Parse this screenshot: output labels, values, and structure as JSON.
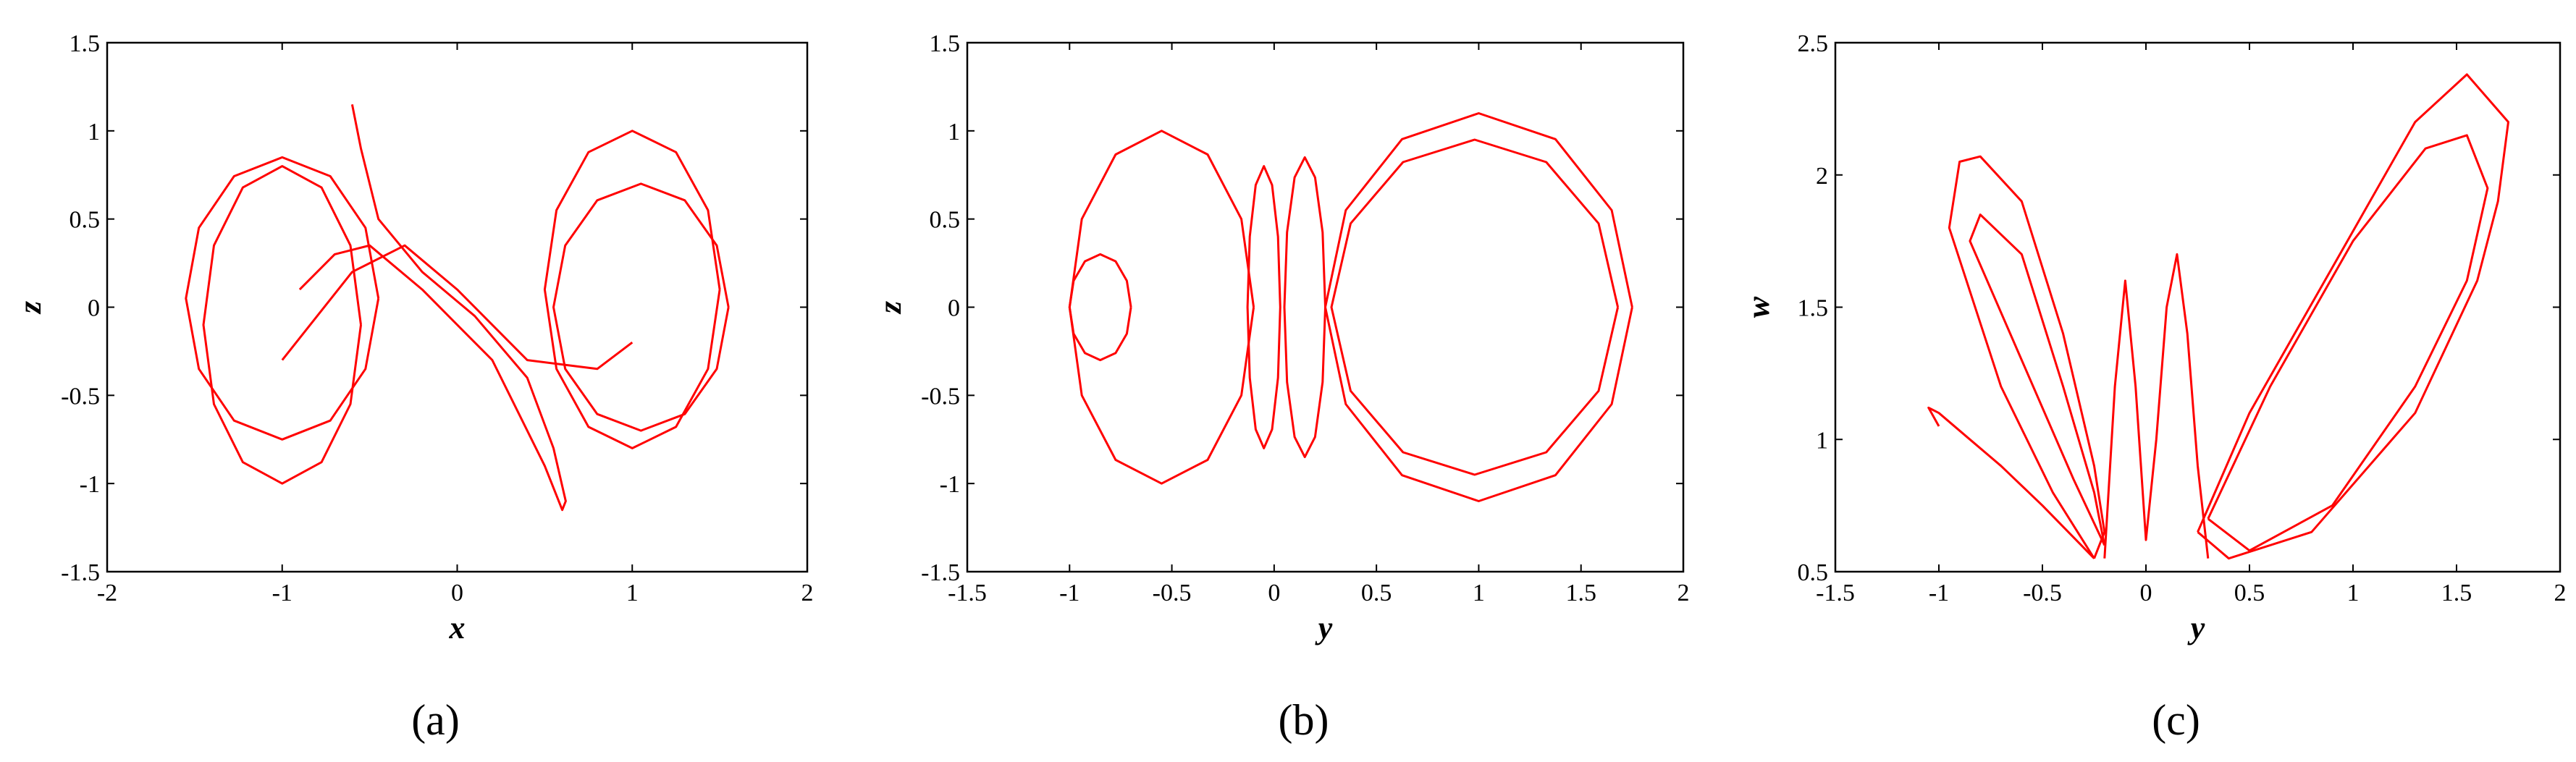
{
  "chart_data": [
    {
      "type": "line",
      "caption": "(a)",
      "xlabel": "x",
      "ylabel": "z",
      "color": "#ff0000",
      "xlim": [
        -2,
        2
      ],
      "ylim": [
        -1.5,
        1.5
      ],
      "xticks": [
        -2,
        -1,
        0,
        1,
        2
      ],
      "yticks": [
        -1.5,
        -1,
        -0.5,
        0,
        0.5,
        1,
        1.5
      ],
      "series": [
        {
          "x": [
            -0.45,
            -0.524,
            -0.725,
            -1,
            -1.275,
            -1.476,
            -1.55,
            -1.476,
            -1.275,
            -1,
            -0.725,
            -0.524,
            -0.45
          ],
          "values": [
            0.05,
            0.45,
            0.743,
            0.85,
            0.743,
            0.45,
            0.05,
            -0.35,
            -0.643,
            -0.75,
            -0.643,
            -0.35,
            0.05
          ]
        },
        {
          "x": [
            -0.55,
            -0.61,
            -0.775,
            -1,
            -1.225,
            -1.39,
            -1.45,
            -1.39,
            -1.225,
            -1,
            -0.775,
            -0.61,
            -0.55
          ],
          "values": [
            -0.1,
            0.35,
            0.679,
            0.8,
            0.679,
            0.35,
            -0.1,
            -0.55,
            -0.879,
            -1.0,
            -0.879,
            -0.55,
            -0.1
          ]
        },
        {
          "x": [
            1.5,
            1.433,
            1.25,
            1,
            0.75,
            0.567,
            0.5,
            0.567,
            0.75,
            1,
            1.25,
            1.433,
            1.5
          ],
          "values": [
            0.1,
            0.55,
            0.879,
            1.0,
            0.879,
            0.55,
            0.1,
            -0.35,
            -0.679,
            -0.8,
            -0.679,
            -0.35,
            0.1
          ]
        },
        {
          "x": [
            1.55,
            1.483,
            1.3,
            1.05,
            0.8,
            0.617,
            0.55,
            0.617,
            0.8,
            1.05,
            1.3,
            1.483,
            1.55
          ],
          "values": [
            0,
            0.35,
            0.606,
            0.7,
            0.606,
            0.35,
            0,
            -0.35,
            -0.606,
            -0.7,
            -0.606,
            -0.35,
            0
          ]
        },
        {
          "x": [
            -0.6,
            -0.55,
            -0.45,
            -0.2,
            0.1,
            0.4,
            0.55,
            0.62,
            0.6,
            0.5,
            0.2,
            -0.2,
            -0.5,
            -0.7,
            -0.9
          ],
          "values": [
            1.15,
            0.9,
            0.5,
            0.2,
            -0.05,
            -0.4,
            -0.8,
            -1.1,
            -1.15,
            -0.9,
            -0.3,
            0.1,
            0.35,
            0.3,
            0.1
          ]
        },
        {
          "x": [
            -1,
            -0.6,
            -0.3,
            0,
            0.4,
            0.8,
            1
          ],
          "values": [
            -0.3,
            0.2,
            0.35,
            0.1,
            -0.3,
            -0.35,
            -0.2
          ]
        }
      ]
    },
    {
      "type": "line",
      "caption": "(b)",
      "xlabel": "y",
      "ylabel": "z",
      "color": "#ff0000",
      "xlim": [
        -1.5,
        2
      ],
      "ylim": [
        -1.5,
        1.5
      ],
      "xticks": [
        -1.5,
        -1,
        -0.5,
        0,
        0.5,
        1,
        1.5,
        2
      ],
      "yticks": [
        -1.5,
        -1,
        -0.5,
        0,
        0.5,
        1,
        1.5
      ],
      "series": [
        {
          "x": [
            1.75,
            1.65,
            1.375,
            1.0,
            0.625,
            0.35,
            0.25,
            0.35,
            0.625,
            1.0,
            1.375,
            1.65,
            1.75
          ],
          "values": [
            0,
            0.55,
            0.953,
            1.1,
            0.953,
            0.55,
            0,
            -0.55,
            -0.953,
            -1.1,
            -0.953,
            -0.55,
            0
          ]
        },
        {
          "x": [
            1.68,
            1.586,
            1.33,
            0.98,
            0.63,
            0.374,
            0.28,
            0.374,
            0.63,
            0.98,
            1.33,
            1.586,
            1.68
          ],
          "values": [
            0,
            0.475,
            0.823,
            0.95,
            0.823,
            0.475,
            0,
            -0.475,
            -0.823,
            -0.95,
            -0.823,
            -0.475,
            0
          ]
        },
        {
          "x": [
            -0.1,
            -0.16,
            -0.325,
            -0.55,
            -0.775,
            -0.94,
            -1.0,
            -0.94,
            -0.775,
            -0.55,
            -0.325,
            -0.16,
            -0.1
          ],
          "values": [
            0,
            0.5,
            0.866,
            1.0,
            0.866,
            0.5,
            0,
            -0.5,
            -0.866,
            -1.0,
            -0.866,
            -0.5,
            0
          ]
        },
        {
          "x": [
            0.03,
            0.019,
            -0.01,
            -0.05,
            -0.09,
            -0.119,
            -0.13,
            -0.119,
            -0.09,
            -0.05,
            -0.01,
            0.019,
            0.03
          ],
          "values": [
            0,
            0.4,
            0.693,
            0.8,
            0.693,
            0.4,
            0,
            -0.4,
            -0.693,
            -0.8,
            -0.693,
            -0.4,
            0
          ]
        },
        {
          "x": [
            0.25,
            0.237,
            0.2,
            0.15,
            0.1,
            0.063,
            0.05,
            0.063,
            0.1,
            0.15,
            0.2,
            0.237,
            0.25
          ],
          "values": [
            0,
            0.425,
            0.736,
            0.85,
            0.736,
            0.425,
            0,
            -0.425,
            -0.736,
            -0.85,
            -0.736,
            -0.425,
            0
          ]
        },
        {
          "x": [
            -0.7,
            -0.72,
            -0.775,
            -0.85,
            -0.925,
            -0.98,
            -1.0,
            -0.98,
            -0.925,
            -0.85,
            -0.775,
            -0.72,
            -0.7
          ],
          "values": [
            0,
            0.15,
            0.26,
            0.3,
            0.26,
            0.15,
            0,
            -0.15,
            -0.26,
            -0.3,
            -0.26,
            -0.15,
            0
          ]
        }
      ]
    },
    {
      "type": "line",
      "caption": "(c)",
      "xlabel": "y",
      "ylabel": "w",
      "color": "#ff0000",
      "xlim": [
        -1.5,
        2
      ],
      "ylim": [
        0.5,
        2.5
      ],
      "xticks": [
        -1.5,
        -1,
        -0.5,
        0,
        0.5,
        1,
        1.5,
        2
      ],
      "yticks": [
        0.5,
        1,
        1.5,
        2,
        2.5
      ],
      "series": [
        {
          "x": [
            0.25,
            0.5,
            0.9,
            1.3,
            1.55,
            1.75,
            1.7,
            1.6,
            1.3,
            0.8,
            0.4,
            0.25
          ],
          "values": [
            0.65,
            1.1,
            1.65,
            2.2,
            2.38,
            2.2,
            1.9,
            1.6,
            1.1,
            0.65,
            0.55,
            0.65
          ]
        },
        {
          "x": [
            0.3,
            0.6,
            1.0,
            1.35,
            1.55,
            1.65,
            1.55,
            1.3,
            0.9,
            0.5,
            0.3
          ],
          "values": [
            0.7,
            1.2,
            1.75,
            2.1,
            2.15,
            1.95,
            1.6,
            1.2,
            0.75,
            0.58,
            0.7
          ]
        },
        {
          "x": [
            -0.25,
            -0.45,
            -0.7,
            -0.95,
            -0.9,
            -0.8,
            -0.6,
            -0.4,
            -0.25,
            -0.2,
            -0.25
          ],
          "values": [
            0.55,
            0.8,
            1.2,
            1.8,
            2.05,
            2.07,
            1.9,
            1.4,
            0.9,
            0.65,
            0.55
          ]
        },
        {
          "x": [
            -0.2,
            -0.35,
            -0.6,
            -0.85,
            -0.8,
            -0.6,
            -0.4,
            -0.25,
            -0.2
          ],
          "values": [
            0.6,
            0.85,
            1.3,
            1.75,
            1.85,
            1.7,
            1.2,
            0.8,
            0.6
          ]
        },
        {
          "x": [
            -0.2,
            -0.15,
            -0.1,
            -0.05,
            0,
            0.05,
            0.1,
            0.15,
            0.2,
            0.25,
            0.3
          ],
          "values": [
            0.55,
            1.2,
            1.6,
            1.2,
            0.62,
            1.0,
            1.5,
            1.7,
            1.4,
            0.9,
            0.55
          ]
        },
        {
          "x": [
            -1,
            -1.05,
            -1,
            -0.85,
            -0.7,
            -0.5,
            -0.25
          ],
          "values": [
            1.05,
            1.12,
            1.1,
            1.0,
            0.9,
            0.75,
            0.55
          ]
        }
      ]
    }
  ]
}
